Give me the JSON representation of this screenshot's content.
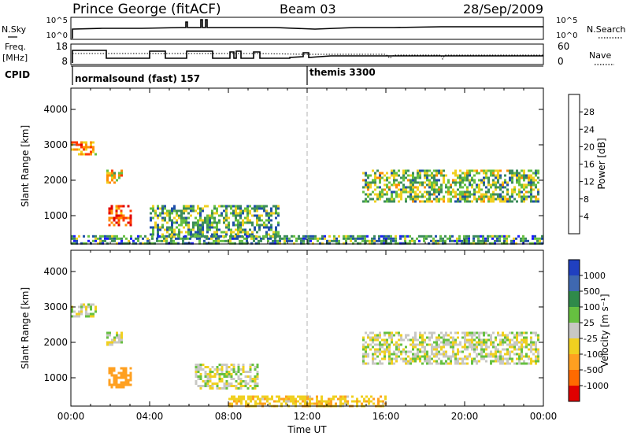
{
  "header": {
    "station": "Prince George (fitACF)",
    "beam": "Beam 03",
    "date": "28/Sep/2009"
  },
  "strip_labels": {
    "nsky": "N.Sky",
    "nsky_ticks": [
      "10^5",
      "10^0"
    ],
    "nsearch": "N.Search",
    "nsearch_ticks": [
      "10^5",
      "10^0"
    ],
    "freq_line1": "Freq.",
    "freq_line2": "[MHz]",
    "freq_ticks": [
      "18",
      "8"
    ],
    "nave": "Nave",
    "nave_ticks": [
      "60",
      "0"
    ],
    "cpid": "CPID"
  },
  "cpid_segments": [
    {
      "label": "normalsound (fast) 157",
      "start_hour": 0
    },
    {
      "label": "themis 3300",
      "start_hour": 12
    }
  ],
  "time_axis": {
    "label": "Time UT",
    "ticks": [
      "00:00",
      "04:00",
      "08:00",
      "12:00",
      "16:00",
      "20:00",
      "00:00"
    ],
    "tick_hours": [
      0,
      4,
      8,
      12,
      16,
      20,
      24
    ]
  },
  "range_axis": {
    "label": "Slant Range [km]",
    "ticks": [
      "1000",
      "2000",
      "3000",
      "4000"
    ],
    "tick_values": [
      1000,
      2000,
      3000,
      4000
    ],
    "range_km": [
      200,
      4600
    ]
  },
  "power_scale": {
    "label": "Power [dB]",
    "ticks": [
      "4",
      "8",
      "12",
      "16",
      "20",
      "24",
      "28"
    ],
    "colors": [
      "#1a1aff",
      "#1f4fa8",
      "#3c8c5a",
      "#66c040",
      "#f0d020",
      "#ff8c00",
      "#ff3b00",
      "#e00000"
    ]
  },
  "velocity_scale": {
    "label": "Velocity [m s⁻¹]",
    "ticks": [
      "1000",
      "500",
      "100",
      "25",
      "-25",
      "-100",
      "-500",
      "-1000"
    ],
    "colors": [
      "#2040c0",
      "#3f68b0",
      "#2f8a4a",
      "#66c040",
      "#c8c8c4",
      "#f0d020",
      "#ffa020",
      "#ff6a00",
      "#e00000"
    ]
  },
  "chart_data": [
    {
      "type": "heatmap",
      "name": "power",
      "xlabel": "Time UT",
      "ylabel": "Slant Range [km]",
      "xlim_hours": [
        0,
        24
      ],
      "ylim_km": [
        200,
        4600
      ],
      "colorbar_label": "Power [dB]",
      "colorbar_range": [
        0,
        30
      ],
      "echo_regions": [
        {
          "t0": 0.0,
          "t1": 1.3,
          "r0": 2700,
          "r1": 3100,
          "level": 22
        },
        {
          "t0": 1.8,
          "t1": 2.6,
          "r0": 1900,
          "r1": 2300,
          "level": 18
        },
        {
          "t0": 1.9,
          "t1": 3.0,
          "r0": 700,
          "r1": 1300,
          "level": 26
        },
        {
          "t0": 4.0,
          "t1": 10.5,
          "r0": 400,
          "r1": 1300,
          "level": 12
        },
        {
          "t0": 14.8,
          "t1": 23.8,
          "r0": 1400,
          "r1": 2300,
          "level": 14
        },
        {
          "t0": 0.0,
          "t1": 24.0,
          "r0": 200,
          "r1": 450,
          "level": 10
        }
      ]
    },
    {
      "type": "heatmap",
      "name": "velocity",
      "xlabel": "Time UT",
      "ylabel": "Slant Range [km]",
      "xlim_hours": [
        0,
        24
      ],
      "ylim_km": [
        200,
        4600
      ],
      "colorbar_label": "Velocity [m s⁻¹]",
      "colorbar_range": [
        -1000,
        1000
      ],
      "echo_regions": [
        {
          "t0": 0.0,
          "t1": 1.3,
          "r0": 2700,
          "r1": 3100,
          "velocity": 0
        },
        {
          "t0": 1.8,
          "t1": 2.6,
          "r0": 1900,
          "r1": 2300,
          "velocity": 0
        },
        {
          "t0": 1.9,
          "t1": 3.0,
          "r0": 700,
          "r1": 1300,
          "velocity": -300
        },
        {
          "t0": 6.3,
          "t1": 9.5,
          "r0": 700,
          "r1": 1400,
          "velocity": 0
        },
        {
          "t0": 14.8,
          "t1": 23.8,
          "r0": 1400,
          "r1": 2300,
          "velocity": 0
        },
        {
          "t0": 8.0,
          "t1": 16.0,
          "r0": 200,
          "r1": 500,
          "velocity": -80
        }
      ]
    }
  ]
}
